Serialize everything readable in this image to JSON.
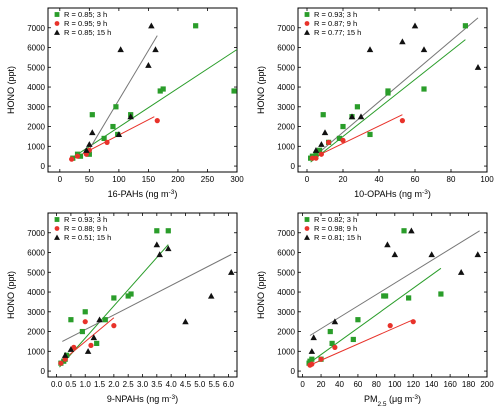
{
  "colors": {
    "green": "#2a9d2a",
    "red": "#e8322a",
    "black": "#111111"
  },
  "chart_data": [
    {
      "type": "scatter",
      "panel": "top-left",
      "xlabel": "16-PAHs (ng m",
      "xlabel_sup": "-3",
      "xlabel_end": ")",
      "ylabel": "HONO (ppt)",
      "xlim": [
        -20,
        300
      ],
      "ylim": [
        -300,
        8000
      ],
      "xticks": [
        0,
        50,
        100,
        150,
        200,
        250,
        300
      ],
      "yticks": [
        0,
        1000,
        2000,
        3000,
        4000,
        5000,
        6000,
        7000
      ],
      "legend_position": "top-left",
      "series": [
        {
          "name": "R = 0.85;  3 h",
          "marker": "square",
          "color": "green",
          "points": [
            [
              22,
              400
            ],
            [
              30,
              600
            ],
            [
              35,
              500
            ],
            [
              50,
              600
            ],
            [
              55,
              2600
            ],
            [
              75,
              1400
            ],
            [
              90,
              2000
            ],
            [
              95,
              3000
            ],
            [
              98,
              1600
            ],
            [
              120,
              2600
            ],
            [
              170,
              3800
            ],
            [
              175,
              3900
            ],
            [
              230,
              7100
            ],
            [
              295,
              3800
            ]
          ],
          "fit": [
            [
              20,
              400
            ],
            [
              300,
              5900
            ]
          ]
        },
        {
          "name": "R = 0.95;  9 h",
          "marker": "circle",
          "color": "red",
          "points": [
            [
              20,
              350
            ],
            [
              30,
              500
            ],
            [
              45,
              600
            ],
            [
              50,
              800
            ],
            [
              80,
              1200
            ],
            [
              165,
              2300
            ]
          ],
          "fit": [
            [
              18,
              300
            ],
            [
              160,
              2500
            ]
          ]
        },
        {
          "name": "R = 0.85;  15 h",
          "marker": "triangle",
          "color": "black",
          "points": [
            [
              45,
              800
            ],
            [
              50,
              1100
            ],
            [
              55,
              1700
            ],
            [
              100,
              1600
            ],
            [
              103,
              5900
            ],
            [
              120,
              2500
            ],
            [
              150,
              5100
            ],
            [
              155,
              7100
            ],
            [
              162,
              5900
            ]
          ],
          "fit": [
            [
              45,
              600
            ],
            [
              165,
              6600
            ]
          ]
        }
      ]
    },
    {
      "type": "scatter",
      "panel": "top-right",
      "xlabel": "10-OPAHs (ng m",
      "xlabel_sup": "-3",
      "xlabel_end": ")",
      "ylabel": "HONO (ppt)",
      "xlim": [
        -5,
        100
      ],
      "ylim": [
        -300,
        8000
      ],
      "xticks": [
        0,
        20,
        40,
        60,
        80,
        100
      ],
      "yticks": [
        0,
        1000,
        2000,
        3000,
        4000,
        5000,
        6000,
        7000
      ],
      "legend_position": "top-left",
      "series": [
        {
          "name": "R = 0.93;  3 h",
          "marker": "square",
          "color": "green",
          "points": [
            [
              2,
              400
            ],
            [
              3,
              500
            ],
            [
              5,
              600
            ],
            [
              7,
              800
            ],
            [
              9,
              2600
            ],
            [
              12,
              1200
            ],
            [
              18,
              1400
            ],
            [
              20,
              2000
            ],
            [
              25,
              2500
            ],
            [
              28,
              3000
            ],
            [
              35,
              1600
            ],
            [
              45,
              3800
            ],
            [
              45,
              3700
            ],
            [
              65,
              3900
            ],
            [
              88,
              7100
            ]
          ],
          "fit": [
            [
              2,
              200
            ],
            [
              88,
              6400
            ]
          ]
        },
        {
          "name": "R = 0.87;  9 h",
          "marker": "circle",
          "color": "red",
          "points": [
            [
              3,
              400
            ],
            [
              5,
              400
            ],
            [
              8,
              600
            ],
            [
              12,
              1200
            ],
            [
              20,
              1300
            ],
            [
              53,
              2300
            ]
          ],
          "fit": [
            [
              3,
              400
            ],
            [
              53,
              2600
            ]
          ]
        },
        {
          "name": "R = 0.77;  15 h",
          "marker": "triangle",
          "color": "black",
          "points": [
            [
              5,
              800
            ],
            [
              8,
              1100
            ],
            [
              10,
              1700
            ],
            [
              25,
              2500
            ],
            [
              30,
              2500
            ],
            [
              35,
              5900
            ],
            [
              53,
              6300
            ],
            [
              60,
              7100
            ],
            [
              65,
              5900
            ],
            [
              95,
              5000
            ]
          ],
          "fit": [
            [
              3,
              400
            ],
            [
              95,
              7500
            ]
          ]
        }
      ]
    },
    {
      "type": "scatter",
      "panel": "bottom-left",
      "xlabel": "9-NPAHs (ng m",
      "xlabel_sup": "-3",
      "xlabel_end": ")",
      "ylabel": "HONO (ppt)",
      "xlim": [
        -0.3,
        6.3
      ],
      "ylim": [
        -300,
        8000
      ],
      "xticks": [
        0.0,
        0.5,
        1.0,
        1.5,
        2.0,
        2.5,
        3.0,
        3.5,
        4.0,
        4.5,
        5.0,
        5.5,
        6.0
      ],
      "yticks": [
        0,
        1000,
        2000,
        3000,
        4000,
        5000,
        6000,
        7000
      ],
      "legend_position": "top-left",
      "series": [
        {
          "name": "R = 0.93;  3 h",
          "marker": "square",
          "color": "green",
          "points": [
            [
              0.15,
              400
            ],
            [
              0.25,
              500
            ],
            [
              0.3,
              600
            ],
            [
              0.35,
              800
            ],
            [
              0.5,
              2600
            ],
            [
              0.9,
              2000
            ],
            [
              1.0,
              3000
            ],
            [
              1.4,
              1400
            ],
            [
              1.7,
              2600
            ],
            [
              2.0,
              3700
            ],
            [
              2.5,
              3800
            ],
            [
              2.6,
              3900
            ],
            [
              3.5,
              7100
            ],
            [
              3.9,
              7100
            ]
          ],
          "fit": [
            [
              0.1,
              200
            ],
            [
              3.9,
              6400
            ]
          ]
        },
        {
          "name": "R = 0.88;  9 h",
          "marker": "circle",
          "color": "red",
          "points": [
            [
              0.15,
              400
            ],
            [
              0.3,
              600
            ],
            [
              0.6,
              1200
            ],
            [
              1.0,
              2500
            ],
            [
              1.2,
              1300
            ],
            [
              2.0,
              2300
            ]
          ],
          "fit": [
            [
              0.1,
              400
            ],
            [
              2.0,
              2700
            ]
          ]
        },
        {
          "name": "R = 0.51;  15 h",
          "marker": "triangle",
          "color": "black",
          "points": [
            [
              0.3,
              800
            ],
            [
              0.5,
              1100
            ],
            [
              1.1,
              1000
            ],
            [
              1.3,
              1700
            ],
            [
              1.5,
              2600
            ],
            [
              3.6,
              5900
            ],
            [
              3.5,
              6400
            ],
            [
              3.9,
              6200
            ],
            [
              4.5,
              2500
            ],
            [
              5.4,
              3800
            ],
            [
              6.1,
              5000
            ]
          ],
          "fit": [
            [
              0.2,
              1500
            ],
            [
              6.1,
              5900
            ]
          ]
        }
      ]
    },
    {
      "type": "scatter",
      "panel": "bottom-right",
      "xlabel": "PM",
      "xlabel_sub": "2.5",
      "xlabel_mid": " (μg m",
      "xlabel_sup": "-3",
      "xlabel_end": ")",
      "ylabel": "HONO (ppt)",
      "xlim": [
        -5,
        200
      ],
      "ylim": [
        -300,
        8000
      ],
      "xticks": [
        0,
        20,
        40,
        60,
        80,
        100,
        120,
        140,
        160,
        180,
        200
      ],
      "yticks": [
        0,
        1000,
        2000,
        3000,
        4000,
        5000,
        6000,
        7000
      ],
      "legend_position": "top-left",
      "series": [
        {
          "name": "R = 0.82;  3 h",
          "marker": "square",
          "color": "green",
          "points": [
            [
              7,
              400
            ],
            [
              8,
              500
            ],
            [
              10,
              600
            ],
            [
              20,
              600
            ],
            [
              30,
              2000
            ],
            [
              32,
              1400
            ],
            [
              55,
              1600
            ],
            [
              60,
              2600
            ],
            [
              88,
              3800
            ],
            [
              90,
              3800
            ],
            [
              110,
              7100
            ],
            [
              115,
              3700
            ],
            [
              150,
              3900
            ]
          ],
          "fit": [
            [
              7,
              400
            ],
            [
              150,
              5200
            ]
          ]
        },
        {
          "name": "R = 0.98;  9 h",
          "marker": "circle",
          "color": "red",
          "points": [
            [
              8,
              300
            ],
            [
              10,
              350
            ],
            [
              20,
              600
            ],
            [
              35,
              1200
            ],
            [
              95,
              2300
            ],
            [
              120,
              2500
            ]
          ],
          "fit": [
            [
              8,
              300
            ],
            [
              120,
              2600
            ]
          ]
        },
        {
          "name": "R = 0.81;  15 h",
          "marker": "triangle",
          "color": "black",
          "points": [
            [
              10,
              1000
            ],
            [
              12,
              1700
            ],
            [
              35,
              2500
            ],
            [
              92,
              6400
            ],
            [
              100,
              5900
            ],
            [
              118,
              7100
            ],
            [
              140,
              5900
            ],
            [
              172,
              5000
            ],
            [
              190,
              5900
            ]
          ],
          "fit": [
            [
              8,
              1800
            ],
            [
              192,
              7100
            ]
          ]
        }
      ]
    }
  ]
}
